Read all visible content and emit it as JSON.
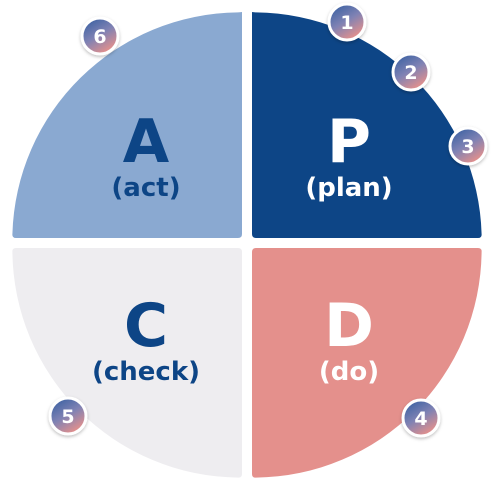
{
  "colors": {
    "act": "#8aa9d1",
    "plan": "#0d4586",
    "check": "#eeedf0",
    "do": "#e4908c",
    "dark_text": "#0d4586",
    "light_text": "#ffffff",
    "badge_top": "#2c5a9e",
    "badge_bottom": "#e4908c"
  },
  "quadrants": {
    "act": {
      "letter": "A",
      "word": "(act)"
    },
    "plan": {
      "letter": "P",
      "word": "(plan)"
    },
    "check": {
      "letter": "C",
      "word": "(check)"
    },
    "do": {
      "letter": "D",
      "word": "(do)"
    }
  },
  "badges": [
    "1",
    "2",
    "3",
    "4",
    "5",
    "6"
  ]
}
